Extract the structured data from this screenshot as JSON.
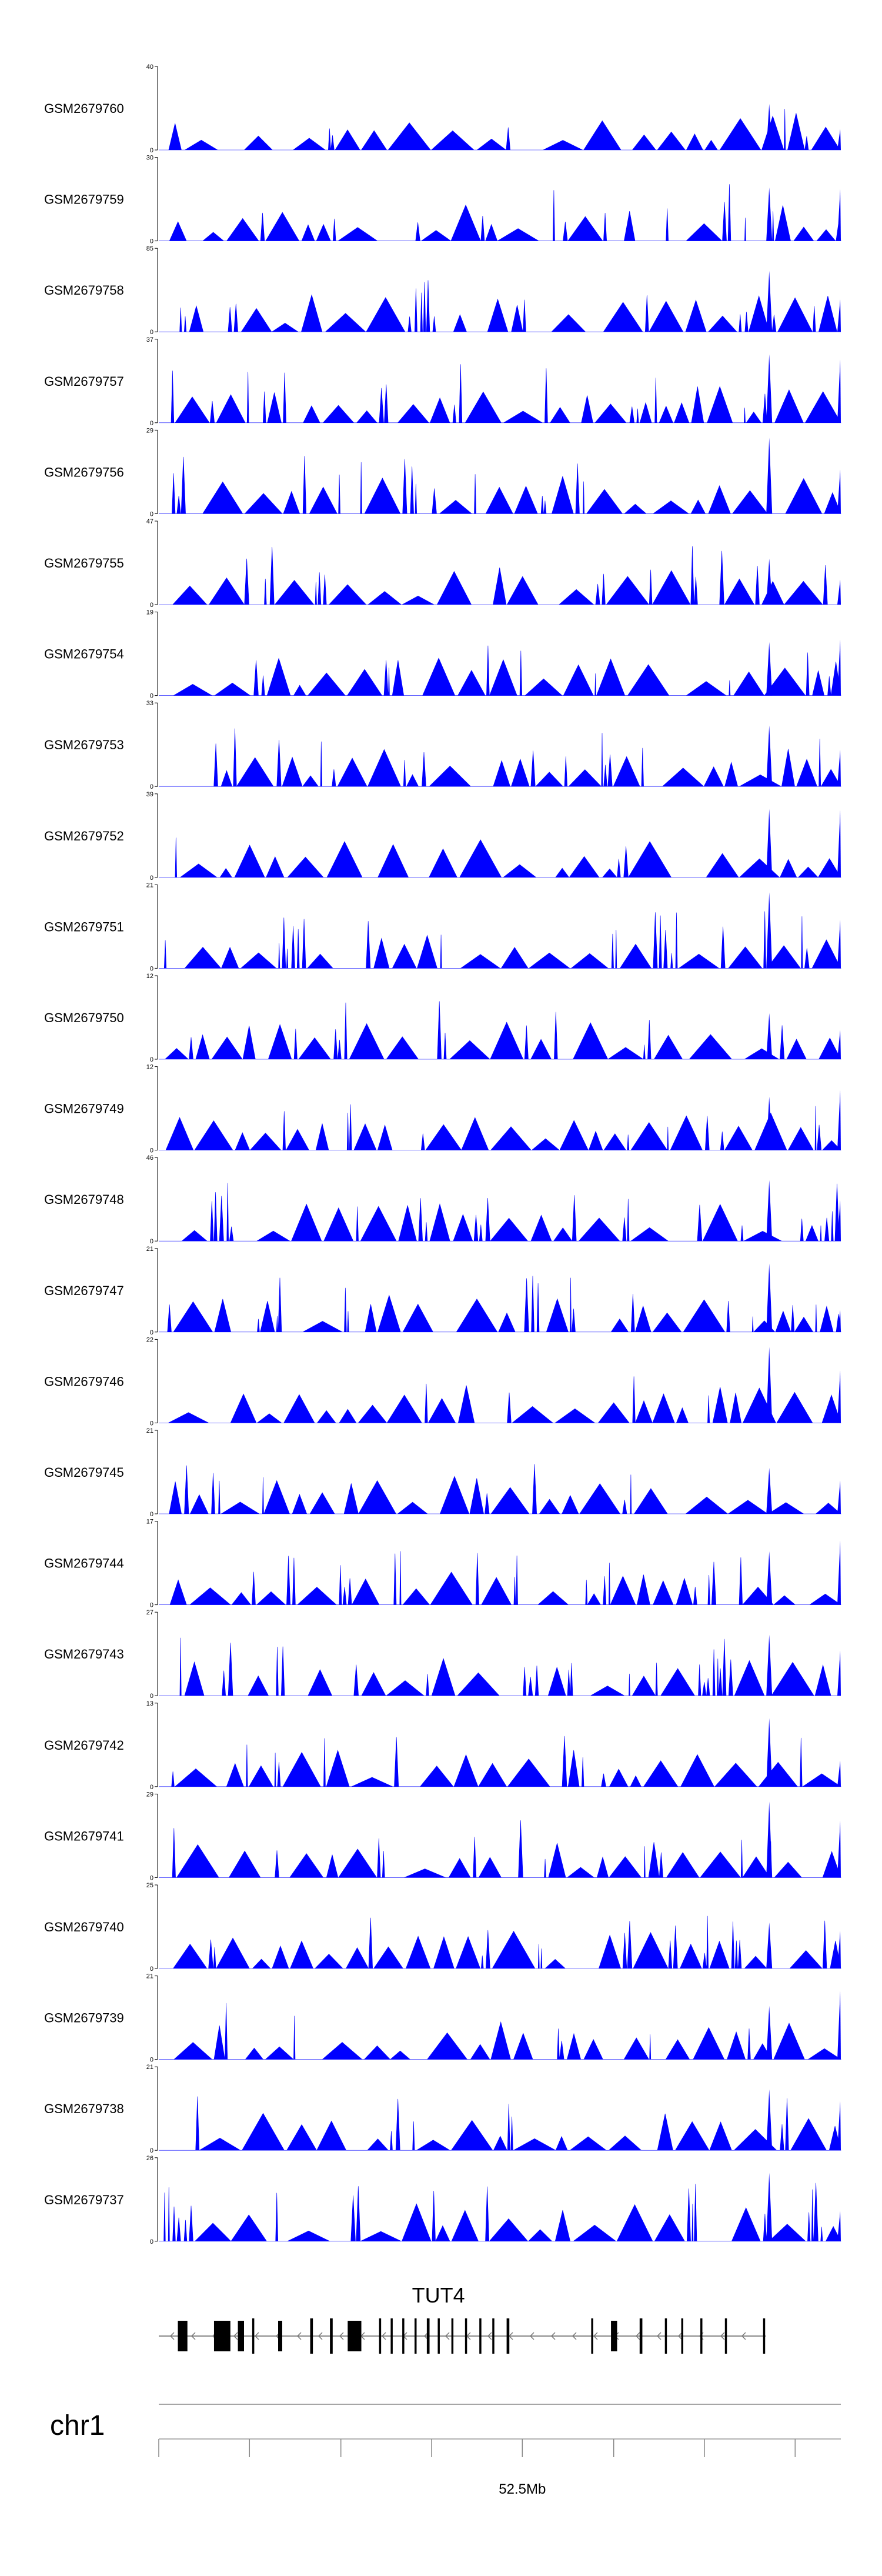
{
  "chart_data": {
    "type": "area",
    "series_color": "#0000ff",
    "tracks": [
      {
        "name": "GSM2679760",
        "ymax": "40",
        "ymin": "0",
        "peak": 40
      },
      {
        "name": "GSM2679759",
        "ymax": "30",
        "ymin": "0",
        "peak": 30
      },
      {
        "name": "GSM2679758",
        "ymax": "85",
        "ymin": "0",
        "peak": 85
      },
      {
        "name": "GSM2679757",
        "ymax": "37",
        "ymin": "0",
        "peak": 37
      },
      {
        "name": "GSM2679756",
        "ymax": "29",
        "ymin": "0",
        "peak": 29
      },
      {
        "name": "GSM2679755",
        "ymax": "47",
        "ymin": "0",
        "peak": 47
      },
      {
        "name": "GSM2679754",
        "ymax": "19",
        "ymin": "0",
        "peak": 19
      },
      {
        "name": "GSM2679753",
        "ymax": "33",
        "ymin": "0",
        "peak": 33
      },
      {
        "name": "GSM2679752",
        "ymax": "39",
        "ymin": "0",
        "peak": 39
      },
      {
        "name": "GSM2679751",
        "ymax": "21",
        "ymin": "0",
        "peak": 21
      },
      {
        "name": "GSM2679750",
        "ymax": "12",
        "ymin": "0",
        "peak": 12
      },
      {
        "name": "GSM2679749",
        "ymax": "12",
        "ymin": "0",
        "peak": 12
      },
      {
        "name": "GSM2679748",
        "ymax": "46",
        "ymin": "0",
        "peak": 46
      },
      {
        "name": "GSM2679747",
        "ymax": "21",
        "ymin": "0",
        "peak": 21
      },
      {
        "name": "GSM2679746",
        "ymax": "22",
        "ymin": "0",
        "peak": 22
      },
      {
        "name": "GSM2679745",
        "ymax": "21",
        "ymin": "0",
        "peak": 21
      },
      {
        "name": "GSM2679744",
        "ymax": "17",
        "ymin": "0",
        "peak": 17
      },
      {
        "name": "GSM2679743",
        "ymax": "27",
        "ymin": "0",
        "peak": 27
      },
      {
        "name": "GSM2679742",
        "ymax": "13",
        "ymin": "0",
        "peak": 13
      },
      {
        "name": "GSM2679741",
        "ymax": "29",
        "ymin": "0",
        "peak": 29
      },
      {
        "name": "GSM2679740",
        "ymax": "25",
        "ymin": "0",
        "peak": 25
      },
      {
        "name": "GSM2679739",
        "ymax": "21",
        "ymin": "0",
        "peak": 21
      },
      {
        "name": "GSM2679738",
        "ymax": "21",
        "ymin": "0",
        "peak": 21
      },
      {
        "name": "GSM2679737",
        "ymax": "26",
        "ymin": "0",
        "peak": 26
      }
    ],
    "gene": {
      "name": "TUT4",
      "strand": "-",
      "exons": [
        [
          0.028,
          0.042
        ],
        [
          0.081,
          0.105
        ],
        [
          0.116,
          0.125
        ],
        [
          0.137,
          0.14
        ],
        [
          0.175,
          0.181
        ],
        [
          0.222,
          0.226
        ],
        [
          0.251,
          0.255
        ],
        [
          0.277,
          0.297
        ],
        [
          0.323,
          0.326
        ],
        [
          0.34,
          0.343
        ],
        [
          0.357,
          0.36
        ],
        [
          0.375,
          0.378
        ],
        [
          0.393,
          0.397
        ],
        [
          0.409,
          0.412
        ],
        [
          0.429,
          0.432
        ],
        [
          0.449,
          0.452
        ],
        [
          0.47,
          0.473
        ],
        [
          0.489,
          0.492
        ],
        [
          0.51,
          0.514
        ],
        [
          0.634,
          0.637
        ],
        [
          0.663,
          0.672
        ],
        [
          0.705,
          0.709
        ],
        [
          0.742,
          0.745
        ],
        [
          0.766,
          0.769
        ],
        [
          0.794,
          0.797
        ],
        [
          0.83,
          0.833
        ],
        [
          0.886,
          0.889
        ]
      ],
      "start": 0.0,
      "end": 0.89
    },
    "axis": {
      "chromosome": "chr1",
      "tick_label": "52.5Mb",
      "ticks": [
        0.0,
        0.133,
        0.267,
        0.4,
        0.533,
        0.667,
        0.8,
        0.933
      ],
      "labeled_tick_index": 4
    }
  }
}
